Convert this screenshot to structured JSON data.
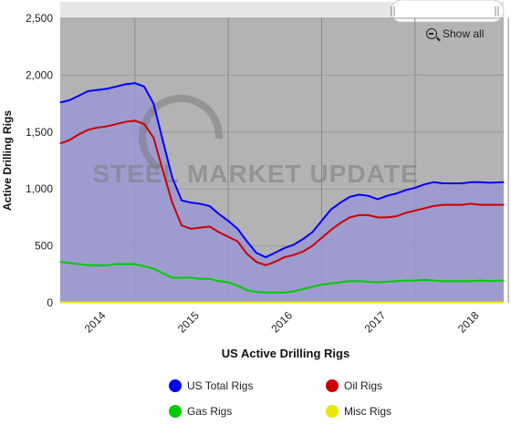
{
  "chart_data": {
    "type": "area",
    "title": "",
    "xlabel": "US Active Drilling Rigs",
    "ylabel": "Active Drilling Rigs",
    "ylim": [
      0,
      2500
    ],
    "y_ticks": [
      "0",
      "500",
      "1,000",
      "1,500",
      "2,000",
      "2,500"
    ],
    "x_ticks": [
      "2014",
      "2015",
      "2016",
      "2017",
      "2018"
    ],
    "xlim": [
      2013.6,
      2018.35
    ],
    "watermark": "STEEL MARKET UPDATE",
    "show_all_label": "Show all",
    "grid": true,
    "legend_position": "bottom",
    "x": [
      2013.6,
      2013.7,
      2013.8,
      2013.9,
      2014.0,
      2014.1,
      2014.2,
      2014.3,
      2014.4,
      2014.5,
      2014.6,
      2014.7,
      2014.8,
      2014.9,
      2015.0,
      2015.1,
      2015.2,
      2015.3,
      2015.4,
      2015.5,
      2015.6,
      2015.7,
      2015.8,
      2015.9,
      2016.0,
      2016.1,
      2016.2,
      2016.3,
      2016.4,
      2016.5,
      2016.6,
      2016.7,
      2016.8,
      2016.9,
      2017.0,
      2017.1,
      2017.2,
      2017.3,
      2017.4,
      2017.5,
      2017.6,
      2017.7,
      2017.8,
      2017.9,
      2018.0,
      2018.1,
      2018.2,
      2018.35
    ],
    "series": [
      {
        "name": "US Total Rigs",
        "color": "#0000ff",
        "values": [
          1760,
          1780,
          1820,
          1860,
          1870,
          1880,
          1900,
          1920,
          1930,
          1900,
          1750,
          1420,
          1100,
          900,
          880,
          870,
          850,
          780,
          720,
          650,
          540,
          440,
          400,
          440,
          480,
          510,
          560,
          620,
          720,
          820,
          880,
          930,
          950,
          940,
          910,
          940,
          960,
          990,
          1010,
          1040,
          1060,
          1050,
          1050,
          1050,
          1060,
          1060,
          1055,
          1060
        ]
      },
      {
        "name": "Oil Rigs",
        "color": "#cc0000",
        "values": [
          1400,
          1430,
          1480,
          1520,
          1540,
          1550,
          1570,
          1590,
          1600,
          1570,
          1450,
          1160,
          880,
          680,
          650,
          660,
          670,
          620,
          580,
          540,
          430,
          360,
          330,
          360,
          400,
          420,
          450,
          500,
          570,
          640,
          700,
          750,
          770,
          770,
          750,
          750,
          760,
          790,
          810,
          830,
          850,
          860,
          860,
          860,
          870,
          860,
          860,
          860
        ]
      },
      {
        "name": "Gas Rigs",
        "color": "#00cc00",
        "values": [
          360,
          350,
          340,
          330,
          330,
          330,
          340,
          340,
          340,
          320,
          300,
          260,
          220,
          220,
          220,
          210,
          210,
          190,
          180,
          150,
          110,
          95,
          90,
          90,
          90,
          100,
          120,
          140,
          160,
          170,
          180,
          190,
          190,
          185,
          180,
          185,
          190,
          195,
          195,
          200,
          195,
          190,
          190,
          190,
          190,
          195,
          190,
          195
        ]
      },
      {
        "name": "Misc Rigs",
        "color": "#e8e800",
        "values": [
          5,
          5,
          5,
          5,
          5,
          5,
          5,
          5,
          5,
          5,
          5,
          5,
          5,
          5,
          5,
          5,
          5,
          5,
          5,
          5,
          5,
          5,
          5,
          5,
          5,
          5,
          5,
          5,
          5,
          5,
          5,
          5,
          5,
          5,
          5,
          5,
          5,
          5,
          5,
          5,
          5,
          5,
          5,
          5,
          5,
          5,
          5,
          5
        ]
      }
    ]
  }
}
